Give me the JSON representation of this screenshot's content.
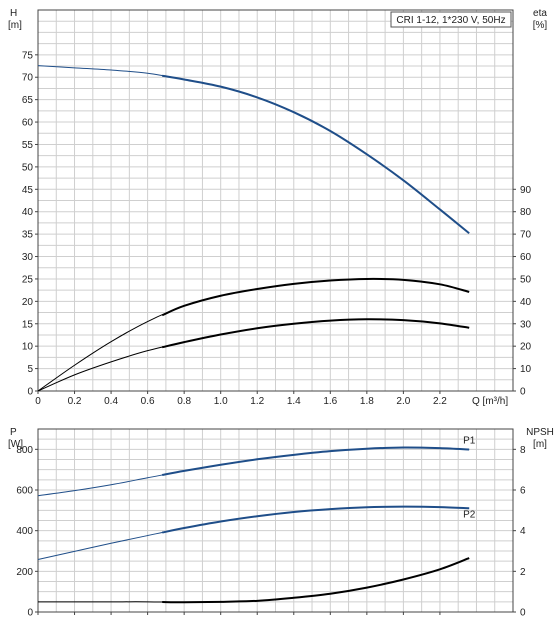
{
  "chart_data": [
    {
      "type": "line",
      "title": "CRI 1-12, 1*230 V, 50Hz",
      "xlabel": "Q [m³/h]",
      "ylabel_left": [
        "H",
        "[m]"
      ],
      "ylabel_right": [
        "eta",
        "[%]"
      ],
      "xlim": [
        0,
        2.6
      ],
      "ylim_left": [
        0,
        85
      ],
      "ylim_right": [
        0,
        170
      ],
      "x_ticks": [
        "0",
        "0.2",
        "0.4",
        "0.6",
        "0.8",
        "1.0",
        "1.2",
        "1.4",
        "1.6",
        "1.8",
        "2.0",
        "2.2"
      ],
      "y_ticks_left": [
        "0",
        "5",
        "10",
        "15",
        "20",
        "25",
        "30",
        "35",
        "40",
        "45",
        "50",
        "55",
        "60",
        "65",
        "70",
        "75"
      ],
      "y_ticks_right": [
        "0",
        "10",
        "20",
        "30",
        "40",
        "50",
        "60",
        "70",
        "80",
        "90"
      ],
      "grid": true,
      "series": [
        {
          "axis": "left",
          "color": "#1f4e89",
          "x": [
            0,
            0.2,
            0.4,
            0.6,
            0.8,
            1.0,
            1.2,
            1.4,
            1.6,
            1.8,
            2.0,
            2.2,
            2.36
          ],
          "values": [
            72.6,
            72.1,
            71.6,
            70.9,
            69.5,
            67.9,
            65.5,
            62.2,
            58.0,
            52.8,
            47.0,
            40.5,
            35.2
          ]
        },
        {
          "axis": "right",
          "color": "#000000",
          "x": [
            0,
            0.2,
            0.4,
            0.6,
            0.8,
            1.0,
            1.2,
            1.4,
            1.6,
            1.8,
            2.0,
            2.2,
            2.36
          ],
          "values": [
            0,
            11.5,
            22,
            31,
            38,
            42.5,
            45.5,
            47.8,
            49.3,
            50,
            49.6,
            47.6,
            44.2
          ]
        },
        {
          "axis": "left",
          "color": "#000000",
          "x": [
            0,
            0.2,
            0.4,
            0.6,
            0.8,
            1.0,
            1.2,
            1.4,
            1.6,
            1.8,
            2.0,
            2.2,
            2.36
          ],
          "values": [
            0,
            3.6,
            6.5,
            9.0,
            10.9,
            12.6,
            14.0,
            15.0,
            15.7,
            16.0,
            15.8,
            15.1,
            14.1
          ]
        }
      ]
    },
    {
      "type": "line",
      "xlabel": "",
      "ylabel_left": [
        "P",
        "[W]"
      ],
      "ylabel_right": [
        "NPSH",
        "[m]"
      ],
      "xlim": [
        0,
        2.6
      ],
      "ylim_left": [
        0,
        900
      ],
      "ylim_right": [
        0,
        9
      ],
      "y_ticks_left": [
        "0",
        "200",
        "400",
        "600",
        "800"
      ],
      "y_ticks_right": [
        "0",
        "2",
        "4",
        "6",
        "8"
      ],
      "grid": true,
      "series": [
        {
          "name": "P1",
          "axis": "left",
          "color": "#1f4e89",
          "x": [
            0,
            0.2,
            0.4,
            0.6,
            0.8,
            1.0,
            1.2,
            1.4,
            1.6,
            1.8,
            2.0,
            2.2,
            2.36
          ],
          "values": [
            572,
            597,
            626,
            660,
            694,
            724,
            751,
            773,
            791,
            803,
            809,
            806,
            799
          ]
        },
        {
          "name": "P2",
          "axis": "left",
          "color": "#1f4e89",
          "x": [
            0,
            0.2,
            0.4,
            0.6,
            0.8,
            1.0,
            1.2,
            1.4,
            1.6,
            1.8,
            2.0,
            2.2,
            2.36
          ],
          "values": [
            258,
            298,
            338,
            376,
            413,
            445,
            471,
            492,
            506,
            515,
            518,
            516,
            510
          ]
        },
        {
          "axis": "right",
          "color": "#000000",
          "x": [
            0,
            0.2,
            0.4,
            0.6,
            0.8,
            1.0,
            1.2,
            1.4,
            1.6,
            1.8,
            2.0,
            2.2,
            2.36
          ],
          "values": [
            0.5,
            0.5,
            0.5,
            0.5,
            0.48,
            0.5,
            0.55,
            0.7,
            0.9,
            1.2,
            1.6,
            2.1,
            2.65
          ]
        }
      ]
    }
  ]
}
